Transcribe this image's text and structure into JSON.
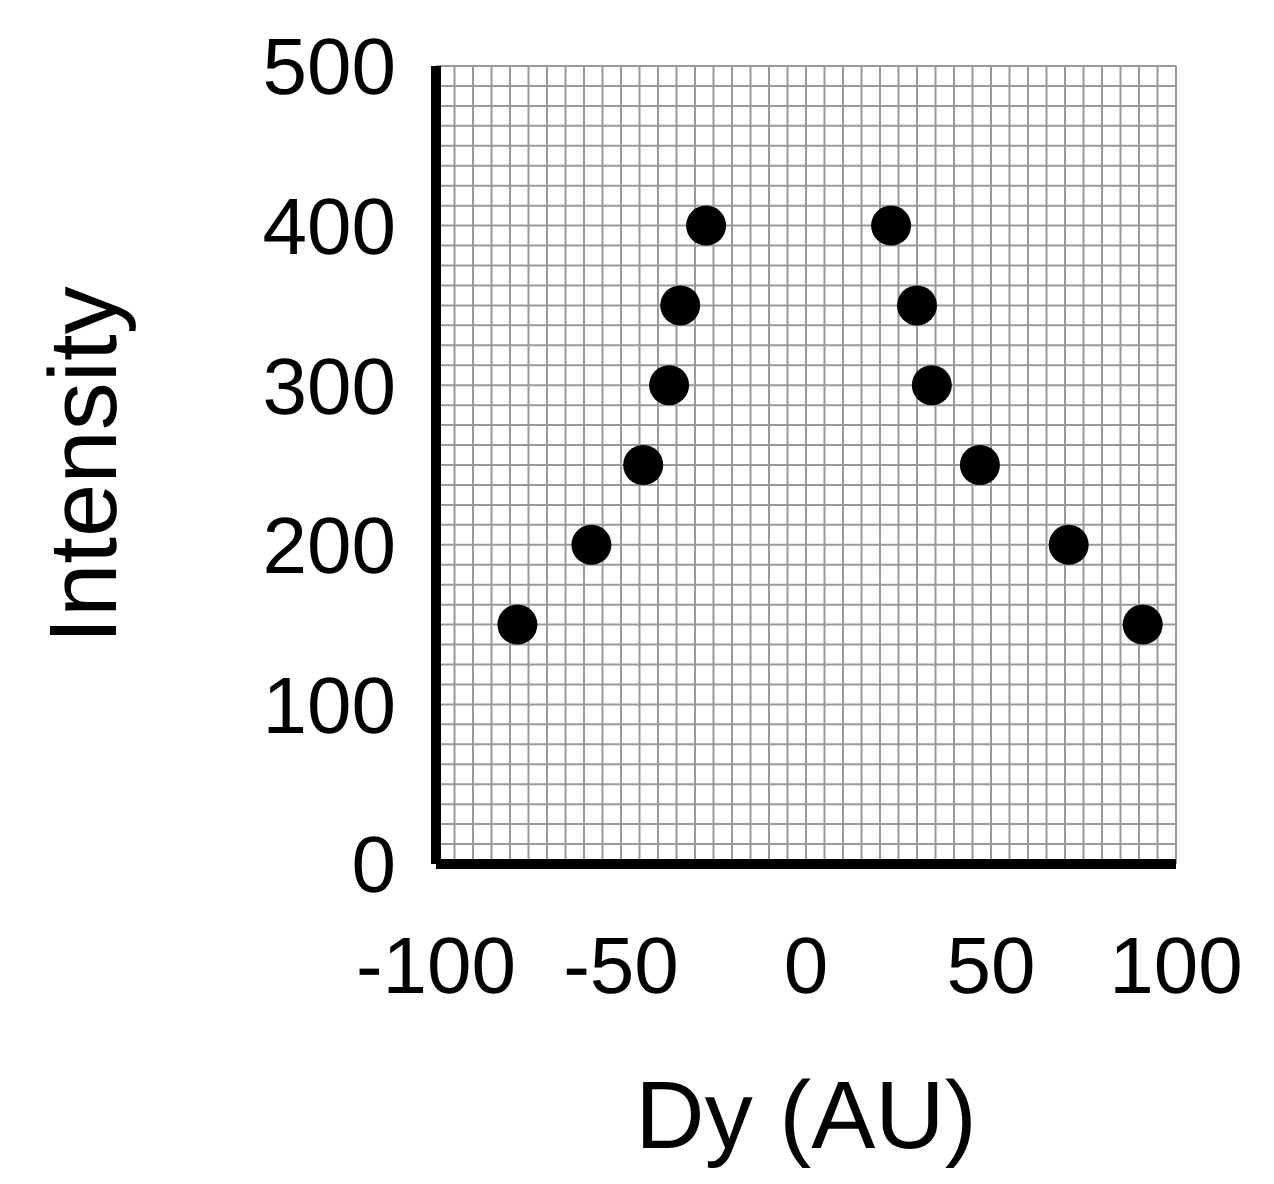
{
  "chart_data": {
    "type": "scatter",
    "xlabel": "Dy (AU)",
    "ylabel": "Intensity",
    "x": [
      -78,
      -58,
      -44,
      -37,
      -34,
      -27,
      23,
      30,
      34,
      47,
      71,
      91
    ],
    "values": [
      150,
      200,
      250,
      300,
      350,
      400,
      400,
      350,
      300,
      250,
      200,
      150
    ],
    "color": "#000000",
    "marker": "circle",
    "grid": true,
    "xlim": [
      -100,
      100
    ],
    "xticks": [
      -100,
      -50,
      0,
      50,
      100
    ],
    "ylim": [
      0,
      500
    ],
    "yticks": [
      0,
      100,
      200,
      300,
      400,
      500
    ]
  }
}
